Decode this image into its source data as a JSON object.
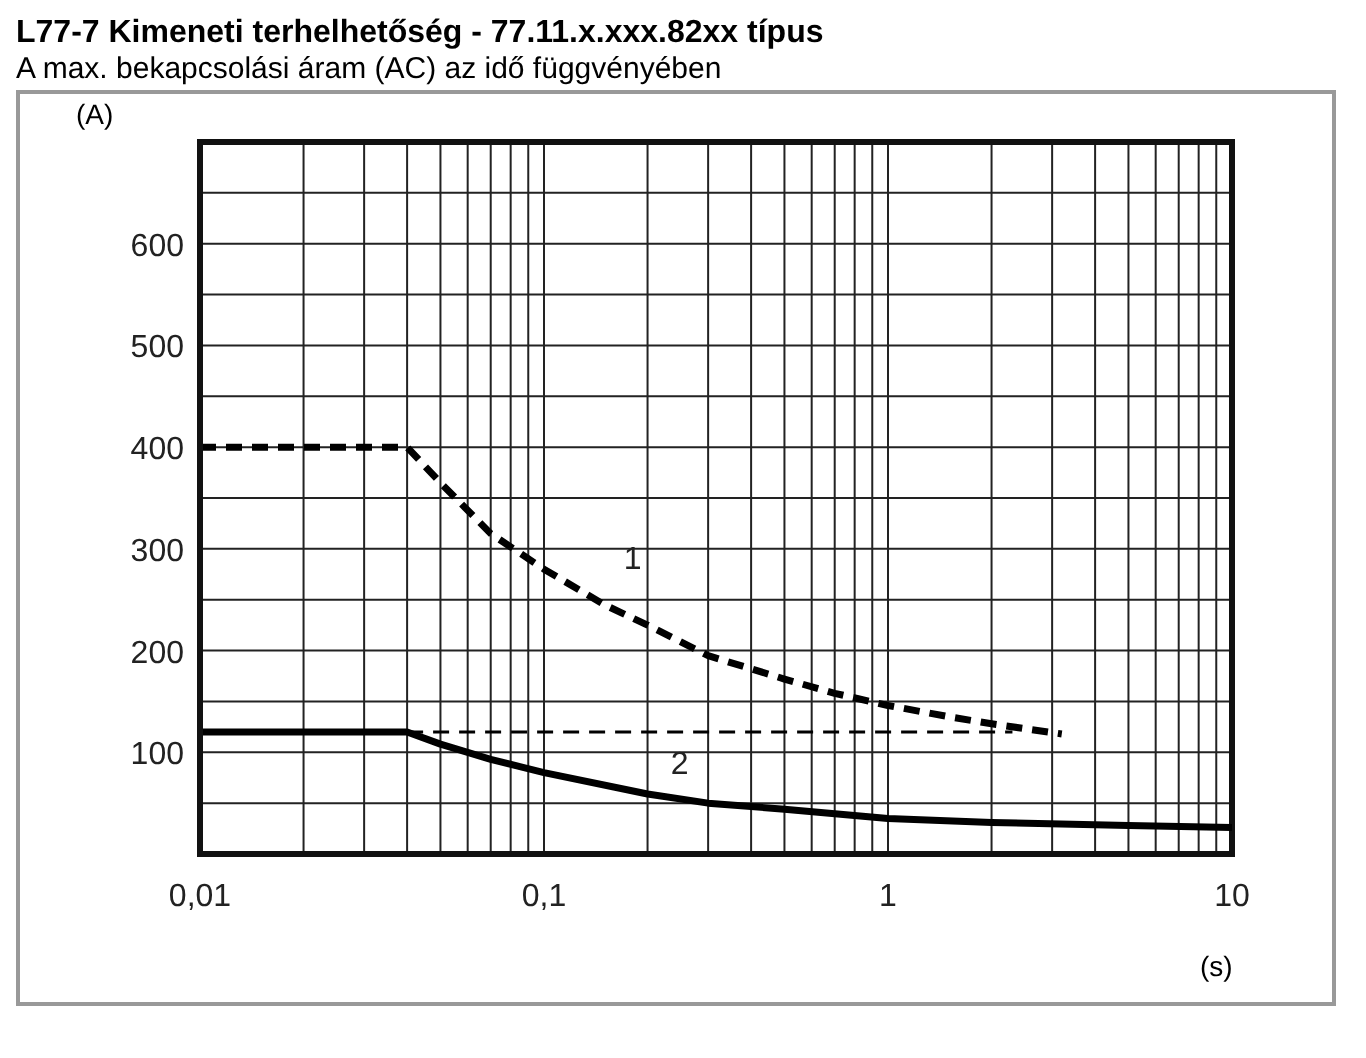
{
  "chart_data": {
    "type": "line",
    "title": "L77-7 Kimeneti terhelhetőség - 77.11.x.xxx.82xx típus",
    "subtitle": "A max. bekapcsolási áram (AC) az idő függvényében",
    "xlabel": "(s)",
    "ylabel": "(A)",
    "log": "x",
    "xlim": [
      0.01,
      10
    ],
    "xticks": [
      {
        "value": 0.01,
        "label": "0,01"
      },
      {
        "value": 0.02,
        "label": null
      },
      {
        "value": 0.03,
        "label": null
      },
      {
        "value": 0.04,
        "label": null
      },
      {
        "value": 0.05,
        "label": null
      },
      {
        "value": 0.06,
        "label": null
      },
      {
        "value": 0.07,
        "label": null
      },
      {
        "value": 0.08,
        "label": null
      },
      {
        "value": 0.09,
        "label": null
      },
      {
        "value": 0.1,
        "label": "0,1"
      },
      {
        "value": 0.2,
        "label": null
      },
      {
        "value": 0.3,
        "label": null
      },
      {
        "value": 0.4,
        "label": null
      },
      {
        "value": 0.5,
        "label": null
      },
      {
        "value": 0.6,
        "label": null
      },
      {
        "value": 0.7,
        "label": null
      },
      {
        "value": 0.8,
        "label": null
      },
      {
        "value": 0.9,
        "label": null
      },
      1,
      {
        "value": 2,
        "label": null
      },
      {
        "value": 3,
        "label": null
      },
      {
        "value": 4,
        "label": null
      },
      {
        "value": 5,
        "label": null
      },
      {
        "value": 6,
        "label": null
      },
      {
        "value": 7,
        "label": null
      },
      {
        "value": 8,
        "label": null
      },
      {
        "value": 9,
        "label": null
      },
      10
    ],
    "ylim": [
      0,
      700
    ],
    "yticks": [
      {
        "value": 0,
        "label": null
      },
      {
        "value": 50,
        "label": null
      },
      100,
      {
        "value": 150,
        "label": null
      },
      200,
      {
        "value": 250,
        "label": null
      },
      300,
      {
        "value": 350,
        "label": null
      },
      400,
      {
        "value": 450,
        "label": null
      },
      500,
      {
        "value": 550,
        "label": null
      },
      600,
      {
        "value": 650,
        "label": null
      },
      {
        "value": 700,
        "label": null
      }
    ],
    "grid": true,
    "legend": false,
    "marker": "none",
    "series": [
      {
        "name": "1",
        "color": "#000000",
        "line_style": "dashed",
        "x": [
          0.01,
          0.04,
          0.05,
          0.07,
          0.1,
          0.15,
          0.2,
          0.3,
          0.5,
          0.7,
          1,
          1.5,
          2,
          3.2
        ],
        "values": [
          400,
          400,
          365,
          315,
          280,
          245,
          225,
          195,
          172,
          158,
          146,
          135,
          128,
          118
        ]
      },
      {
        "name": "2",
        "color": "#000000",
        "line_style": "solid",
        "x": [
          0.01,
          0.04,
          0.05,
          0.07,
          0.1,
          0.2,
          0.3,
          0.5,
          1,
          2,
          5,
          10
        ],
        "values": [
          120,
          120,
          108,
          93,
          80,
          59,
          50,
          44,
          35,
          31,
          28,
          26
        ]
      },
      {
        "color": "#000000",
        "line_style": "dashed",
        "x": [
          0.04,
          2.3
        ],
        "values": [
          120,
          120
        ]
      }
    ]
  }
}
